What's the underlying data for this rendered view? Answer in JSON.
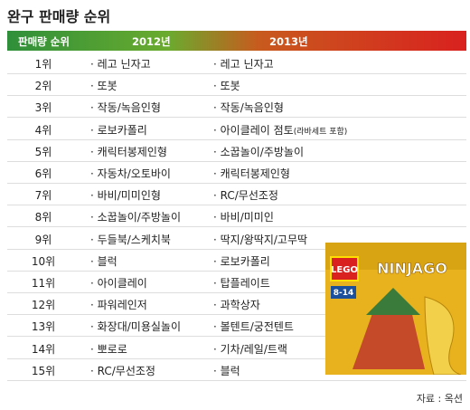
{
  "title": "완구 판매량 순위",
  "table": {
    "header": [
      "판매량 순위",
      "2012년",
      "2013년"
    ],
    "rows": [
      {
        "rank": "1위",
        "y2012": "· 레고 닌자고",
        "y2013": "· 레고 닌자고"
      },
      {
        "rank": "2위",
        "y2012": "· 또봇",
        "y2013": "· 또봇"
      },
      {
        "rank": "3위",
        "y2012": "· 작동/녹음인형",
        "y2013": "· 작동/녹음인형"
      },
      {
        "rank": "4위",
        "y2012": "· 로보카폴리",
        "y2013": "· 아이클레이 점토",
        "note": "(라바세트 포함)"
      },
      {
        "rank": "5위",
        "y2012": "· 캐릭터봉제인형",
        "y2013": "· 소꿉놀이/주방놀이"
      },
      {
        "rank": "6위",
        "y2012": "· 자동차/오토바이",
        "y2013": "· 캐릭터봉제인형"
      },
      {
        "rank": "7위",
        "y2012": "· 바비/미미인형",
        "y2013": "· RC/무선조정"
      },
      {
        "rank": "8위",
        "y2012": "· 소꿉놀이/주방놀이",
        "y2013": "· 바비/미미인"
      },
      {
        "rank": "9위",
        "y2012": "· 두들북/스케치북",
        "y2013": "· 딱지/왕딱지/고무딱"
      },
      {
        "rank": "10위",
        "y2012": "· 블럭",
        "y2013": "· 로보카폴리"
      },
      {
        "rank": "11위",
        "y2012": "· 아이클레이",
        "y2013": "· 탑플레이트"
      },
      {
        "rank": "12위",
        "y2012": "· 파워레인저",
        "y2013": "· 과학상자"
      },
      {
        "rank": "13위",
        "y2012": "· 화장대/미용실놀이",
        "y2013": "· 볼텐트/궁전텐트"
      },
      {
        "rank": "14위",
        "y2012": "· 뽀로로",
        "y2013": "· 기차/레일/트랙"
      },
      {
        "rank": "15위",
        "y2012": "· RC/무선조정",
        "y2013": "· 블럭"
      }
    ]
  },
  "image": {
    "logo": "LEGO",
    "name": "NINJAGO",
    "age": "8-14"
  },
  "source": "자료 : 옥션"
}
